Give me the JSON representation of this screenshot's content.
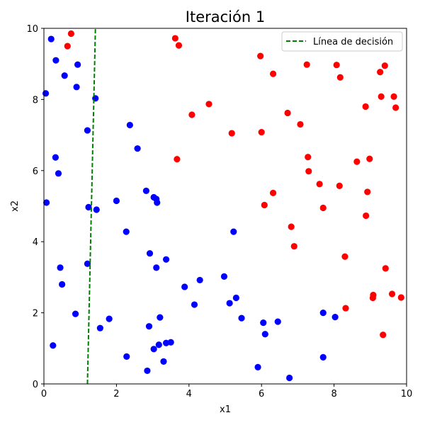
{
  "chart_data": {
    "type": "scatter",
    "title": "Iteración 1",
    "xlabel": "x1",
    "ylabel": "x2",
    "xlim": [
      0,
      10
    ],
    "ylim": [
      0,
      10
    ],
    "xticks": [
      0,
      2,
      4,
      6,
      8,
      10
    ],
    "yticks": [
      0,
      2,
      4,
      6,
      8,
      10
    ],
    "grid": false,
    "legend": {
      "placement": "upper-right",
      "entries": [
        {
          "label": "Línea de decisión",
          "color": "#008000",
          "style": "dashed"
        }
      ]
    },
    "series": [
      {
        "color": "#ff0000",
        "points": [
          [
            0.75,
            9.85
          ],
          [
            0.65,
            9.5
          ],
          [
            3.62,
            9.72
          ],
          [
            3.72,
            9.52
          ],
          [
            5.97,
            9.22
          ],
          [
            6.32,
            8.72
          ],
          [
            7.25,
            8.98
          ],
          [
            8.07,
            8.97
          ],
          [
            8.17,
            8.62
          ],
          [
            9.4,
            8.95
          ],
          [
            9.27,
            8.77
          ],
          [
            9.3,
            8.08
          ],
          [
            9.65,
            8.08
          ],
          [
            9.7,
            7.77
          ],
          [
            8.87,
            7.8
          ],
          [
            4.08,
            7.57
          ],
          [
            4.55,
            7.87
          ],
          [
            6.72,
            7.62
          ],
          [
            7.07,
            7.3
          ],
          [
            5.18,
            7.05
          ],
          [
            6.0,
            7.08
          ],
          [
            7.28,
            6.38
          ],
          [
            3.67,
            6.32
          ],
          [
            7.3,
            5.98
          ],
          [
            8.63,
            6.25
          ],
          [
            8.98,
            6.33
          ],
          [
            7.6,
            5.62
          ],
          [
            8.15,
            5.57
          ],
          [
            8.92,
            5.4
          ],
          [
            6.32,
            5.37
          ],
          [
            6.08,
            5.03
          ],
          [
            7.7,
            4.95
          ],
          [
            8.88,
            4.73
          ],
          [
            6.82,
            4.42
          ],
          [
            6.9,
            3.87
          ],
          [
            8.3,
            3.58
          ],
          [
            9.42,
            3.25
          ],
          [
            9.08,
            2.5
          ],
          [
            9.07,
            2.42
          ],
          [
            9.6,
            2.53
          ],
          [
            9.85,
            2.43
          ],
          [
            8.32,
            2.13
          ],
          [
            9.35,
            1.38
          ]
        ]
      },
      {
        "color": "#0000ff",
        "points": [
          [
            0.2,
            9.7
          ],
          [
            0.33,
            9.1
          ],
          [
            0.93,
            8.98
          ],
          [
            0.57,
            8.67
          ],
          [
            0.9,
            8.35
          ],
          [
            0.05,
            8.17
          ],
          [
            1.42,
            8.03
          ],
          [
            1.2,
            7.13
          ],
          [
            2.37,
            7.28
          ],
          [
            2.58,
            6.62
          ],
          [
            0.32,
            6.37
          ],
          [
            0.4,
            5.92
          ],
          [
            0.07,
            5.1
          ],
          [
            2.82,
            5.43
          ],
          [
            3.03,
            5.25
          ],
          [
            3.1,
            5.2
          ],
          [
            3.12,
            5.1
          ],
          [
            2.0,
            5.15
          ],
          [
            1.23,
            4.97
          ],
          [
            1.45,
            4.9
          ],
          [
            2.27,
            4.28
          ],
          [
            5.23,
            4.28
          ],
          [
            2.92,
            3.67
          ],
          [
            3.37,
            3.5
          ],
          [
            1.2,
            3.38
          ],
          [
            0.45,
            3.27
          ],
          [
            3.1,
            3.27
          ],
          [
            4.97,
            3.02
          ],
          [
            4.3,
            2.92
          ],
          [
            0.5,
            2.8
          ],
          [
            3.88,
            2.73
          ],
          [
            5.3,
            2.42
          ],
          [
            5.12,
            2.27
          ],
          [
            4.15,
            2.23
          ],
          [
            0.87,
            1.97
          ],
          [
            7.7,
            2.0
          ],
          [
            8.03,
            1.88
          ],
          [
            3.2,
            1.87
          ],
          [
            5.45,
            1.85
          ],
          [
            1.8,
            1.83
          ],
          [
            6.05,
            1.72
          ],
          [
            6.45,
            1.75
          ],
          [
            1.55,
            1.57
          ],
          [
            2.9,
            1.62
          ],
          [
            6.1,
            1.4
          ],
          [
            0.25,
            1.08
          ],
          [
            3.17,
            1.1
          ],
          [
            3.5,
            1.17
          ],
          [
            3.37,
            1.15
          ],
          [
            3.03,
            0.98
          ],
          [
            2.28,
            0.77
          ],
          [
            7.7,
            0.75
          ],
          [
            3.3,
            0.63
          ],
          [
            5.9,
            0.47
          ],
          [
            2.85,
            0.37
          ],
          [
            6.77,
            0.17
          ]
        ]
      }
    ],
    "decision_line": {
      "label": "Línea de décisión",
      "color": "#008000",
      "points": [
        [
          1.2,
          0
        ],
        [
          1.42,
          10
        ]
      ]
    }
  }
}
